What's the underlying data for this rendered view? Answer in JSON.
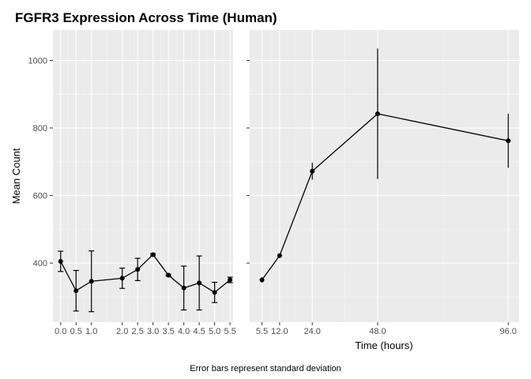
{
  "chart_data": {
    "type": "line",
    "title": "FGFR3 Expression Across Time (Human)",
    "ylabel": "Mean Count",
    "xlabel": "Time (hours)",
    "caption": "Error bars represent standard deviation",
    "ylim": [
      225,
      1090
    ],
    "y_ticks": [
      400,
      600,
      800,
      1000
    ],
    "grid": true,
    "colors": {
      "panel": "#ebebeb",
      "grid": "#ffffff",
      "line": "#000000",
      "text": "#4d4d4d"
    },
    "panels": [
      {
        "xlim": [
          -0.25,
          5.6
        ],
        "x_ticks": [
          "0.0",
          "0.5",
          "1.0",
          "2.0",
          "2.5",
          "3.0",
          "3.5",
          "4.0",
          "4.5",
          "5.0",
          "5.5"
        ],
        "points": [
          {
            "x": 0.0,
            "y": 405,
            "sd": 30
          },
          {
            "x": 0.5,
            "y": 318,
            "sd": 60
          },
          {
            "x": 1.0,
            "y": 346,
            "sd": 90
          },
          {
            "x": 2.0,
            "y": 355,
            "sd": 30
          },
          {
            "x": 2.5,
            "y": 381,
            "sd": 33
          },
          {
            "x": 3.0,
            "y": 425,
            "sd": 3
          },
          {
            "x": 3.5,
            "y": 364,
            "sd": 3
          },
          {
            "x": 4.0,
            "y": 326,
            "sd": 65
          },
          {
            "x": 4.5,
            "y": 341,
            "sd": 80
          },
          {
            "x": 5.0,
            "y": 313,
            "sd": 30
          },
          {
            "x": 5.5,
            "y": 350,
            "sd": 8
          }
        ]
      },
      {
        "xlim": [
          1.0,
          100.0
        ],
        "x_ticks": [
          "5.5",
          "12.0",
          "24.0",
          "48.0",
          "96.0"
        ],
        "points": [
          {
            "x": 5.5,
            "y": 350,
            "sd": 8
          },
          {
            "x": 12.0,
            "y": 422,
            "sd": 3
          },
          {
            "x": 24.0,
            "y": 672,
            "sd": 25
          },
          {
            "x": 48.0,
            "y": 842,
            "sd": 193
          },
          {
            "x": 96.0,
            "y": 762,
            "sd": 80
          }
        ]
      }
    ]
  }
}
